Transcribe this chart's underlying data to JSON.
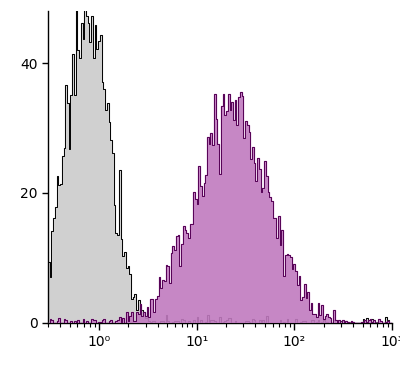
{
  "xlim": [
    0.3,
    1000
  ],
  "ylim": [
    0,
    48
  ],
  "yticks": [
    0,
    20,
    40
  ],
  "control_peak_log": -0.12,
  "control_peak_height": 48,
  "control_sigma": 0.22,
  "stain_peak_log": 1.35,
  "stain_peak_height": 35,
  "stain_sigma": 0.38,
  "control_fill_color": "#d0d0d0",
  "control_line_color": "#000000",
  "stain_fill_color": "#c07abf",
  "stain_line_color": "#550055",
  "background_color": "#ffffff",
  "n_bins": 200,
  "n_points": 50000,
  "noise_seed": 7
}
